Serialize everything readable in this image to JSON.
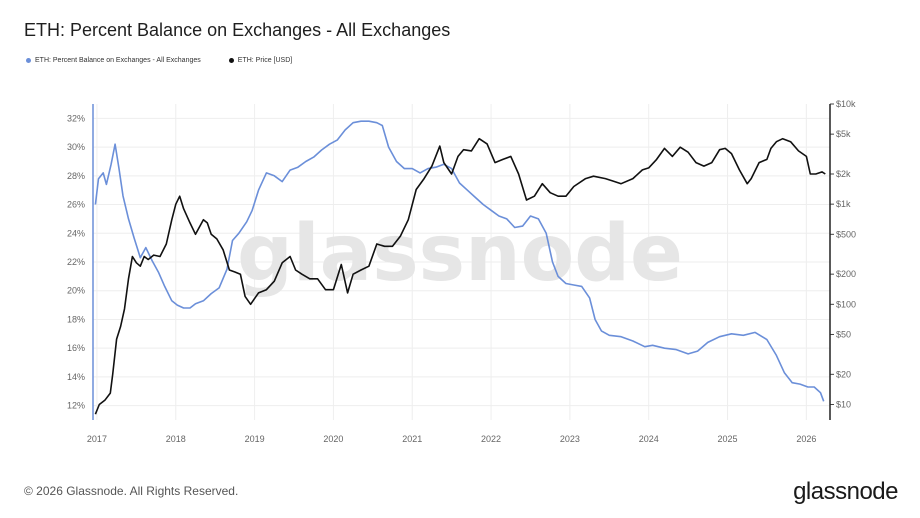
{
  "title": "ETH: Percent Balance on Exchanges - All Exchanges",
  "footer": {
    "copyright": "© 2026 Glassnode. All Rights Reserved.",
    "brand": "glassnode"
  },
  "watermark": "glassnode",
  "colors": {
    "balance": "#6b8fd9",
    "price": "#111111",
    "grid": "#eeeeee"
  },
  "chart_data": {
    "type": "line",
    "title": "ETH: Percent Balance on Exchanges - All Exchanges",
    "grid": true,
    "legend_position": "top-left",
    "x_ticks": [
      "2017",
      "2018",
      "2019",
      "2020",
      "2021",
      "2022",
      "2023",
      "2024",
      "2025",
      "2026"
    ],
    "x_range": [
      2016.95,
      2026.3
    ],
    "y_left": {
      "scale": "linear",
      "range": [
        11,
        33
      ],
      "ticks": [
        12,
        14,
        16,
        18,
        20,
        22,
        24,
        26,
        28,
        30,
        32
      ],
      "tick_labels": [
        "12%",
        "14%",
        "16%",
        "18%",
        "20%",
        "22%",
        "24%",
        "26%",
        "28%",
        "30%",
        "32%"
      ]
    },
    "y_right": {
      "scale": "log",
      "range": [
        7,
        10000
      ],
      "ticks": [
        10,
        20,
        50,
        100,
        200,
        500,
        1000,
        2000,
        5000,
        10000
      ],
      "tick_labels": [
        "$10",
        "$20",
        "$50",
        "$100",
        "$200",
        "$500",
        "$1k",
        "$2k",
        "$5k",
        "$10k"
      ]
    },
    "series": [
      {
        "name": "ETH: Percent Balance on Exchanges - All Exchanges",
        "axis": "left",
        "points": [
          [
            2016.98,
            26.0
          ],
          [
            2017.02,
            27.8
          ],
          [
            2017.08,
            28.2
          ],
          [
            2017.12,
            27.4
          ],
          [
            2017.18,
            28.8
          ],
          [
            2017.23,
            30.2
          ],
          [
            2017.28,
            28.5
          ],
          [
            2017.33,
            26.6
          ],
          [
            2017.4,
            25.0
          ],
          [
            2017.47,
            23.7
          ],
          [
            2017.55,
            22.3
          ],
          [
            2017.62,
            23.0
          ],
          [
            2017.7,
            22.1
          ],
          [
            2017.78,
            21.3
          ],
          [
            2017.86,
            20.3
          ],
          [
            2017.95,
            19.3
          ],
          [
            2018.02,
            19.0
          ],
          [
            2018.1,
            18.8
          ],
          [
            2018.18,
            18.8
          ],
          [
            2018.25,
            19.1
          ],
          [
            2018.35,
            19.3
          ],
          [
            2018.45,
            19.8
          ],
          [
            2018.55,
            20.2
          ],
          [
            2018.65,
            21.5
          ],
          [
            2018.72,
            23.5
          ],
          [
            2018.8,
            24.0
          ],
          [
            2018.9,
            24.8
          ],
          [
            2018.97,
            25.6
          ],
          [
            2019.05,
            27.0
          ],
          [
            2019.15,
            28.2
          ],
          [
            2019.25,
            28.0
          ],
          [
            2019.35,
            27.6
          ],
          [
            2019.45,
            28.4
          ],
          [
            2019.55,
            28.6
          ],
          [
            2019.65,
            29.0
          ],
          [
            2019.75,
            29.3
          ],
          [
            2019.85,
            29.8
          ],
          [
            2019.95,
            30.2
          ],
          [
            2020.05,
            30.5
          ],
          [
            2020.15,
            31.2
          ],
          [
            2020.25,
            31.7
          ],
          [
            2020.35,
            31.8
          ],
          [
            2020.45,
            31.8
          ],
          [
            2020.55,
            31.7
          ],
          [
            2020.62,
            31.5
          ],
          [
            2020.7,
            30.0
          ],
          [
            2020.8,
            29.0
          ],
          [
            2020.9,
            28.5
          ],
          [
            2021.0,
            28.5
          ],
          [
            2021.1,
            28.2
          ],
          [
            2021.2,
            28.5
          ],
          [
            2021.3,
            28.6
          ],
          [
            2021.4,
            28.8
          ],
          [
            2021.5,
            28.5
          ],
          [
            2021.6,
            27.5
          ],
          [
            2021.7,
            27.0
          ],
          [
            2021.8,
            26.5
          ],
          [
            2021.9,
            26.0
          ],
          [
            2022.0,
            25.6
          ],
          [
            2022.1,
            25.2
          ],
          [
            2022.2,
            25.0
          ],
          [
            2022.3,
            24.4
          ],
          [
            2022.4,
            24.5
          ],
          [
            2022.5,
            25.2
          ],
          [
            2022.6,
            25.0
          ],
          [
            2022.7,
            24.0
          ],
          [
            2022.78,
            22.0
          ],
          [
            2022.85,
            21.0
          ],
          [
            2022.95,
            20.5
          ],
          [
            2023.05,
            20.4
          ],
          [
            2023.15,
            20.3
          ],
          [
            2023.25,
            19.5
          ],
          [
            2023.32,
            18.0
          ],
          [
            2023.4,
            17.2
          ],
          [
            2023.5,
            16.9
          ],
          [
            2023.65,
            16.8
          ],
          [
            2023.8,
            16.5
          ],
          [
            2023.95,
            16.1
          ],
          [
            2024.05,
            16.2
          ],
          [
            2024.2,
            16.0
          ],
          [
            2024.35,
            15.9
          ],
          [
            2024.5,
            15.6
          ],
          [
            2024.62,
            15.8
          ],
          [
            2024.75,
            16.4
          ],
          [
            2024.9,
            16.8
          ],
          [
            2025.05,
            17.0
          ],
          [
            2025.2,
            16.9
          ],
          [
            2025.35,
            17.1
          ],
          [
            2025.5,
            16.6
          ],
          [
            2025.62,
            15.5
          ],
          [
            2025.72,
            14.3
          ],
          [
            2025.82,
            13.6
          ],
          [
            2025.92,
            13.5
          ],
          [
            2026.02,
            13.3
          ],
          [
            2026.1,
            13.3
          ],
          [
            2026.18,
            12.9
          ],
          [
            2026.22,
            12.3
          ]
        ]
      },
      {
        "name": "ETH: Price [USD]",
        "axis": "right",
        "points": [
          [
            2016.98,
            8
          ],
          [
            2017.03,
            10
          ],
          [
            2017.1,
            11
          ],
          [
            2017.17,
            13
          ],
          [
            2017.2,
            20
          ],
          [
            2017.25,
            45
          ],
          [
            2017.3,
            60
          ],
          [
            2017.35,
            90
          ],
          [
            2017.4,
            180
          ],
          [
            2017.45,
            300
          ],
          [
            2017.5,
            260
          ],
          [
            2017.55,
            240
          ],
          [
            2017.6,
            300
          ],
          [
            2017.65,
            280
          ],
          [
            2017.72,
            310
          ],
          [
            2017.8,
            300
          ],
          [
            2017.88,
            400
          ],
          [
            2017.95,
            700
          ],
          [
            2018.0,
            1000
          ],
          [
            2018.05,
            1200
          ],
          [
            2018.1,
            900
          ],
          [
            2018.18,
            650
          ],
          [
            2018.25,
            500
          ],
          [
            2018.35,
            700
          ],
          [
            2018.4,
            650
          ],
          [
            2018.45,
            500
          ],
          [
            2018.52,
            450
          ],
          [
            2018.6,
            350
          ],
          [
            2018.68,
            220
          ],
          [
            2018.75,
            210
          ],
          [
            2018.82,
            200
          ],
          [
            2018.88,
            120
          ],
          [
            2018.95,
            100
          ],
          [
            2019.05,
            130
          ],
          [
            2019.15,
            140
          ],
          [
            2019.25,
            170
          ],
          [
            2019.35,
            260
          ],
          [
            2019.45,
            300
          ],
          [
            2019.52,
            220
          ],
          [
            2019.6,
            200
          ],
          [
            2019.7,
            180
          ],
          [
            2019.8,
            180
          ],
          [
            2019.9,
            140
          ],
          [
            2020.0,
            140
          ],
          [
            2020.1,
            250
          ],
          [
            2020.18,
            130
          ],
          [
            2020.25,
            200
          ],
          [
            2020.35,
            220
          ],
          [
            2020.45,
            240
          ],
          [
            2020.55,
            400
          ],
          [
            2020.65,
            380
          ],
          [
            2020.75,
            380
          ],
          [
            2020.85,
            480
          ],
          [
            2020.95,
            700
          ],
          [
            2021.05,
            1400
          ],
          [
            2021.15,
            1800
          ],
          [
            2021.25,
            2400
          ],
          [
            2021.35,
            3800
          ],
          [
            2021.4,
            2600
          ],
          [
            2021.5,
            2000
          ],
          [
            2021.58,
            3000
          ],
          [
            2021.65,
            3500
          ],
          [
            2021.75,
            3400
          ],
          [
            2021.85,
            4500
          ],
          [
            2021.95,
            4000
          ],
          [
            2022.05,
            2600
          ],
          [
            2022.15,
            2800
          ],
          [
            2022.25,
            3000
          ],
          [
            2022.35,
            2000
          ],
          [
            2022.45,
            1100
          ],
          [
            2022.55,
            1200
          ],
          [
            2022.65,
            1600
          ],
          [
            2022.75,
            1300
          ],
          [
            2022.85,
            1200
          ],
          [
            2022.95,
            1200
          ],
          [
            2023.05,
            1500
          ],
          [
            2023.2,
            1800
          ],
          [
            2023.3,
            1900
          ],
          [
            2023.45,
            1800
          ],
          [
            2023.55,
            1700
          ],
          [
            2023.65,
            1600
          ],
          [
            2023.8,
            1800
          ],
          [
            2023.92,
            2200
          ],
          [
            2024.0,
            2300
          ],
          [
            2024.1,
            2800
          ],
          [
            2024.2,
            3600
          ],
          [
            2024.3,
            3000
          ],
          [
            2024.4,
            3700
          ],
          [
            2024.5,
            3300
          ],
          [
            2024.6,
            2600
          ],
          [
            2024.7,
            2400
          ],
          [
            2024.8,
            2600
          ],
          [
            2024.9,
            3500
          ],
          [
            2024.97,
            3600
          ],
          [
            2025.05,
            3200
          ],
          [
            2025.15,
            2200
          ],
          [
            2025.25,
            1600
          ],
          [
            2025.3,
            1800
          ],
          [
            2025.4,
            2600
          ],
          [
            2025.5,
            2800
          ],
          [
            2025.55,
            3600
          ],
          [
            2025.62,
            4200
          ],
          [
            2025.7,
            4500
          ],
          [
            2025.8,
            4200
          ],
          [
            2025.9,
            3400
          ],
          [
            2026.0,
            3000
          ],
          [
            2026.05,
            2000
          ],
          [
            2026.12,
            2000
          ],
          [
            2026.2,
            2100
          ],
          [
            2026.24,
            2000
          ]
        ]
      }
    ]
  }
}
